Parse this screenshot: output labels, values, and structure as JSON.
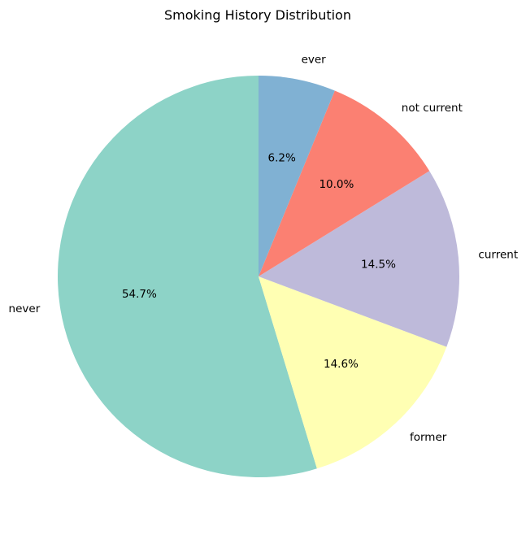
{
  "chart_data": {
    "type": "pie",
    "title": "Smoking History Distribution",
    "start_angle_deg": 90,
    "direction": "counterclockwise",
    "slices": [
      {
        "label": "never",
        "value": 54.7,
        "pct_label": "54.7%",
        "color": "#8dd3c7"
      },
      {
        "label": "former",
        "value": 14.6,
        "pct_label": "14.6%",
        "color": "#ffffb3"
      },
      {
        "label": "current",
        "value": 14.5,
        "pct_label": "14.5%",
        "color": "#bebada"
      },
      {
        "label": "not current",
        "value": 10.0,
        "pct_label": "10.0%",
        "color": "#fb8072"
      },
      {
        "label": "ever",
        "value": 6.2,
        "pct_label": "6.2%",
        "color": "#80b1d3"
      }
    ]
  }
}
